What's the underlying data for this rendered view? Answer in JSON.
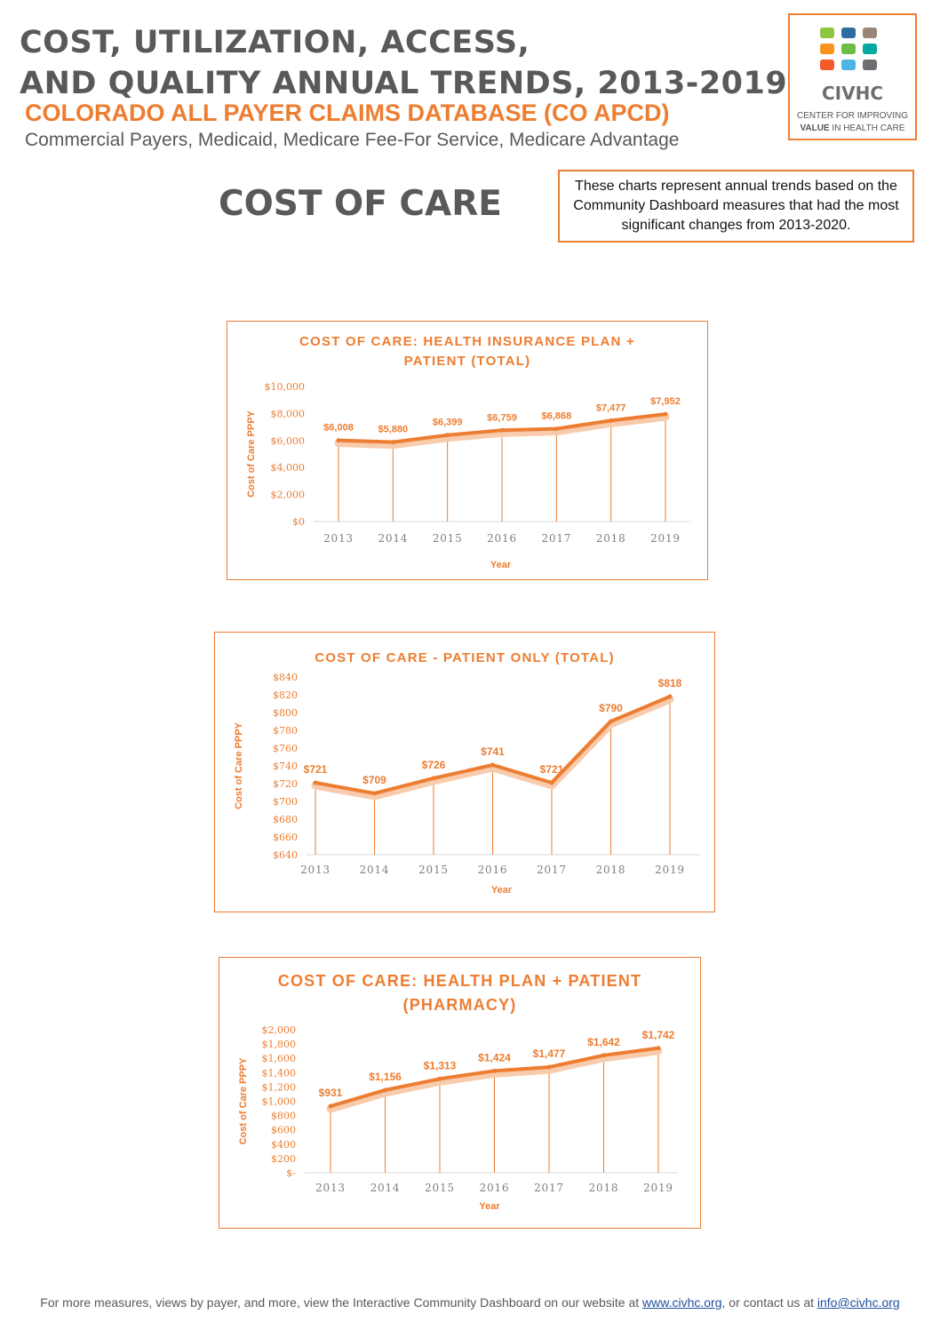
{
  "header": {
    "title_line1": "COST, UTILIZATION, ACCESS,",
    "title_line2": "AND QUALITY  ANNUAL TRENDS, 2013-2019",
    "subtitle": "COLORADO ALL PAYER CLAIMS DATABASE (CO APCD)",
    "payers": "Commercial Payers, Medicaid, Medicare Fee-For Service, Medicare Advantage"
  },
  "section_title": "COST OF CARE",
  "note": "These charts represent  annual trends based on the Community Dashboard measures that had the most significant changes from 2013-2020.",
  "logo": {
    "name": "CIVHC",
    "tagline_line1": "CENTER FOR IMPROVING",
    "tagline_line2_bold": "VALUE",
    "tagline_line2_rest": " IN HEALTH CARE",
    "tile_colors": [
      "#8DC63F",
      "#2E6DA4",
      "#9B8579",
      "#F7941D",
      "#6CBE45",
      "#00A99D",
      "#F15A29",
      "#4CB5E6",
      "#6D6E71"
    ]
  },
  "colors": {
    "accent": "#ED7D31",
    "text": "#595959"
  },
  "chart_data": [
    {
      "type": "line",
      "title_lines": [
        "COST OF CARE: HEALTH INSURANCE PLAN +",
        "PATIENT (TOTAL)"
      ],
      "xlabel": "Year",
      "ylabel": "Cost of Care PPPY",
      "categories": [
        "2013",
        "2014",
        "2015",
        "2016",
        "2017",
        "2018",
        "2019"
      ],
      "values": [
        6008,
        5880,
        6399,
        6759,
        6868,
        7477,
        7952
      ],
      "data_labels": [
        "$6,008",
        "$5,880",
        "$6,399",
        "$6,759",
        "$6,868",
        "$7,477",
        "$7,952"
      ],
      "ylim": [
        0,
        10000
      ],
      "yticks": [
        0,
        2000,
        4000,
        6000,
        8000,
        10000
      ],
      "ytick_labels": [
        "$0",
        "$2,000",
        "$4,000",
        "$6,000",
        "$8,000",
        "$10,000"
      ],
      "drop_lines": true,
      "grid": false
    },
    {
      "type": "line",
      "title_lines": [
        "COST OF CARE - PATIENT ONLY (TOTAL)"
      ],
      "xlabel": "Year",
      "ylabel": "Cost of Care PPPY",
      "categories": [
        "2013",
        "2014",
        "2015",
        "2016",
        "2017",
        "2018",
        "2019"
      ],
      "values": [
        721,
        709,
        726,
        741,
        721,
        790,
        818
      ],
      "data_labels": [
        "$721",
        "$709",
        "$726",
        "$741",
        "$721",
        "$790",
        "$818"
      ],
      "ylim": [
        640,
        840
      ],
      "yticks": [
        640,
        660,
        680,
        700,
        720,
        740,
        760,
        780,
        800,
        820,
        840
      ],
      "ytick_labels": [
        "$640",
        "$660",
        "$680",
        "$700",
        "$720",
        "$740",
        "$760",
        "$780",
        "$800",
        "$820",
        "$840"
      ],
      "drop_lines": true,
      "grid": false
    },
    {
      "type": "line",
      "title_lines": [
        "COST OF CARE: HEALTH PLAN + PATIENT",
        "(PHARMACY)"
      ],
      "xlabel": "Year",
      "ylabel": "Cost of Care PPPY",
      "categories": [
        "2013",
        "2014",
        "2015",
        "2016",
        "2017",
        "2018",
        "2019"
      ],
      "values": [
        931,
        1156,
        1313,
        1424,
        1477,
        1642,
        1742
      ],
      "data_labels": [
        "$931",
        "$1,156",
        "$1,313",
        "$1,424",
        "$1,477",
        "$1,642",
        "$1,742"
      ],
      "ylim": [
        0,
        2000
      ],
      "yticks": [
        0,
        200,
        400,
        600,
        800,
        1000,
        1200,
        1400,
        1600,
        1800,
        2000
      ],
      "ytick_labels": [
        "$-",
        "$200",
        "$400",
        "$600",
        "$800",
        "$1,000",
        "$1,200",
        "$1,400",
        "$1,600",
        "$1,800",
        "$2,000"
      ],
      "drop_lines": true,
      "grid": false
    }
  ],
  "footer": {
    "text_before": "For more measures, views by payer, and more, view the Interactive Community Dashboard on our website at ",
    "link1": "www.civhc.org",
    "text_middle": ", or contact us at ",
    "link2": "info@civhc.org"
  }
}
